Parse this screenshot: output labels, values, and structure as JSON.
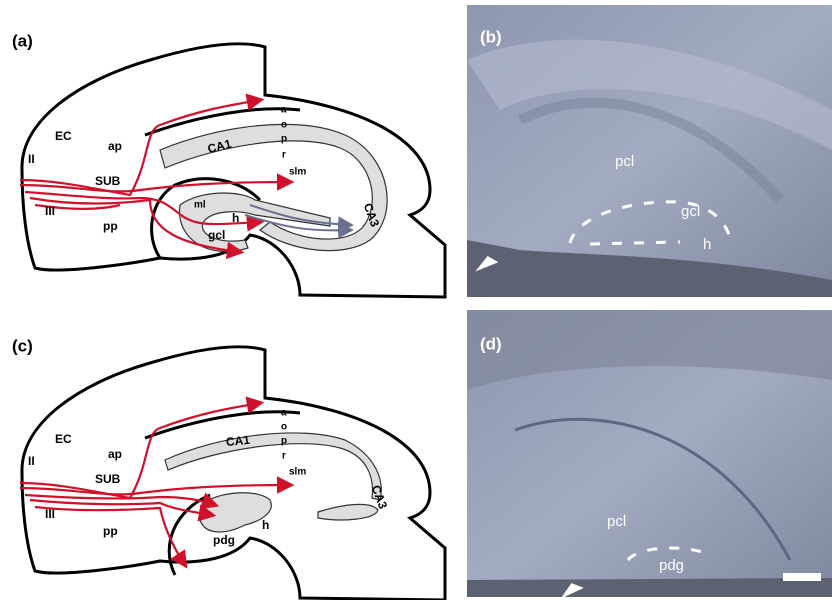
{
  "panels": [
    {
      "label": "(a)",
      "labels": [
        "EC",
        "II",
        "III",
        "ap",
        "SUB",
        "pp",
        "CA1",
        "a",
        "o",
        "p",
        "r",
        "slm",
        "ml",
        "h",
        "gcl",
        "CA3"
      ]
    },
    {
      "label": "(b)",
      "labels": [
        "pcl",
        "gcl",
        "h"
      ]
    },
    {
      "label": "(c)",
      "labels": [
        "EC",
        "II",
        "III",
        "ap",
        "SUB",
        "pp",
        "CA1",
        "a",
        "o",
        "p",
        "r",
        "slm",
        "CA3",
        "h",
        "pdg"
      ]
    },
    {
      "label": "(d)",
      "labels": [
        "pcl",
        "pdg"
      ]
    }
  ]
}
